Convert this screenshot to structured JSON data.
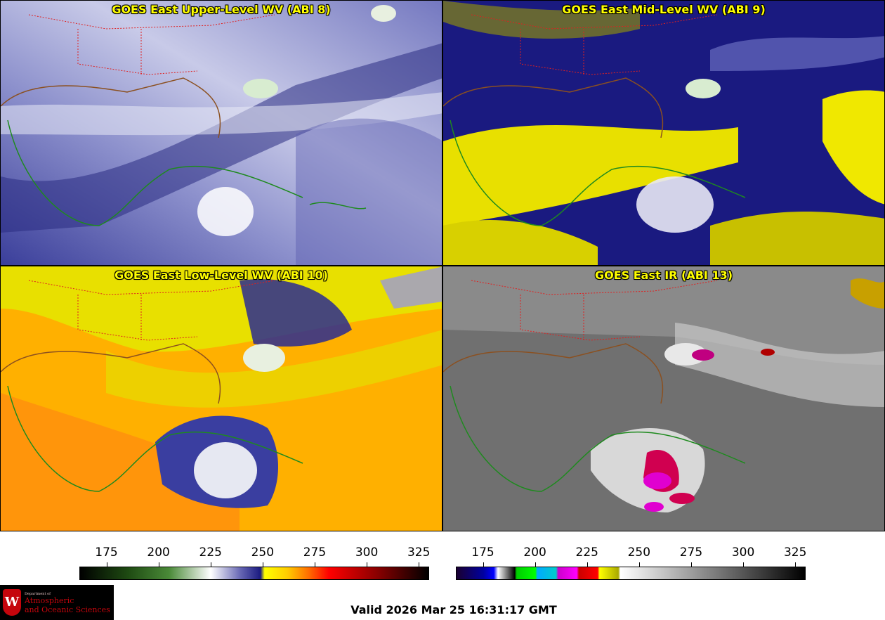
{
  "panels": [
    {
      "title": "GOES East Upper-Level WV (ABI 8)",
      "palette": "wv-upper"
    },
    {
      "title": "GOES East Mid-Level WV (ABI 9)",
      "palette": "wv-mid"
    },
    {
      "title": "GOES East Low-Level WV (ABI 10)",
      "palette": "wv-low"
    },
    {
      "title": "GOES East IR (ABI 13)",
      "palette": "ir"
    }
  ],
  "colorbars": {
    "wv": {
      "ticks": [
        "175",
        "200",
        "225",
        "250",
        "275",
        "300",
        "325"
      ],
      "range": [
        162,
        330
      ],
      "stops": [
        {
          "t": 162,
          "c": "#000000"
        },
        {
          "t": 185,
          "c": "#1e4a12"
        },
        {
          "t": 205,
          "c": "#4a8a38"
        },
        {
          "t": 225,
          "c": "#ffffff"
        },
        {
          "t": 240,
          "c": "#6060b0"
        },
        {
          "t": 249,
          "c": "#1a1a80"
        },
        {
          "t": 251,
          "c": "#ffff00"
        },
        {
          "t": 262,
          "c": "#ffcc00"
        },
        {
          "t": 272,
          "c": "#ff7000"
        },
        {
          "t": 282,
          "c": "#ff0000"
        },
        {
          "t": 305,
          "c": "#8b0000"
        },
        {
          "t": 330,
          "c": "#000000"
        }
      ]
    },
    "ir": {
      "ticks": [
        "175",
        "200",
        "225",
        "250",
        "275",
        "300",
        "325"
      ],
      "range": [
        162,
        330
      ],
      "stops": [
        {
          "t": 162,
          "c": "#1a0030"
        },
        {
          "t": 175,
          "c": "#0000a0"
        },
        {
          "t": 180,
          "c": "#0000ff"
        },
        {
          "t": 182,
          "c": "#ffffff"
        },
        {
          "t": 190,
          "c": "#000000"
        },
        {
          "t": 191,
          "c": "#00cc00"
        },
        {
          "t": 200,
          "c": "#00ff00"
        },
        {
          "t": 201,
          "c": "#00aaff"
        },
        {
          "t": 210,
          "c": "#00cccc"
        },
        {
          "t": 211,
          "c": "#cc00cc"
        },
        {
          "t": 220,
          "c": "#ff00ff"
        },
        {
          "t": 221,
          "c": "#cc0000"
        },
        {
          "t": 230,
          "c": "#ff0000"
        },
        {
          "t": 231,
          "c": "#ffff00"
        },
        {
          "t": 240,
          "c": "#aaaa00"
        },
        {
          "t": 241,
          "c": "#ffffff"
        },
        {
          "t": 330,
          "c": "#000000"
        }
      ]
    }
  },
  "valid_time": "Valid 2026 Mar 25 16:31:17 GMT",
  "logo": {
    "crest": "W",
    "dept": "Department of",
    "line1": "Atmospheric",
    "line2": "and Oceanic Sciences"
  }
}
